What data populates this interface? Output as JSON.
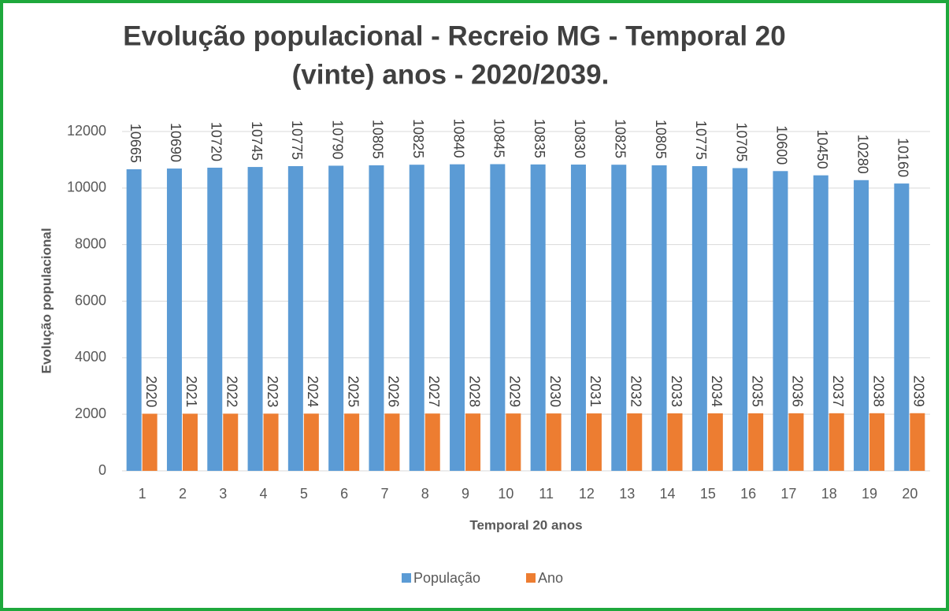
{
  "chart_data": {
    "type": "bar",
    "title": [
      "Evolução populacional - Recreio MG - Temporal 20",
      "(vinte) anos - 2020/2039."
    ],
    "x_label": "Temporal 20 anos",
    "y_label": "Evolução populacional",
    "categories": [
      "1",
      "2",
      "3",
      "4",
      "5",
      "6",
      "7",
      "8",
      "9",
      "10",
      "11",
      "12",
      "13",
      "14",
      "15",
      "16",
      "17",
      "18",
      "19",
      "20"
    ],
    "series": [
      {
        "name": "População",
        "color": "#5b9bd5",
        "values": [
          10665,
          10690,
          10720,
          10745,
          10775,
          10790,
          10805,
          10825,
          10840,
          10845,
          10835,
          10830,
          10825,
          10805,
          10775,
          10705,
          10600,
          10450,
          10280,
          10160
        ]
      },
      {
        "name": "Ano",
        "color": "#ed7d31",
        "values": [
          2020,
          2021,
          2022,
          2023,
          2024,
          2025,
          2026,
          2027,
          2028,
          2029,
          2030,
          2031,
          2032,
          2033,
          2034,
          2035,
          2036,
          2037,
          2038,
          2039
        ]
      }
    ],
    "ylim": [
      0,
      12000
    ],
    "yticks": [
      0,
      2000,
      4000,
      6000,
      8000,
      10000,
      12000
    ],
    "grid": true,
    "legend": "bottom"
  }
}
